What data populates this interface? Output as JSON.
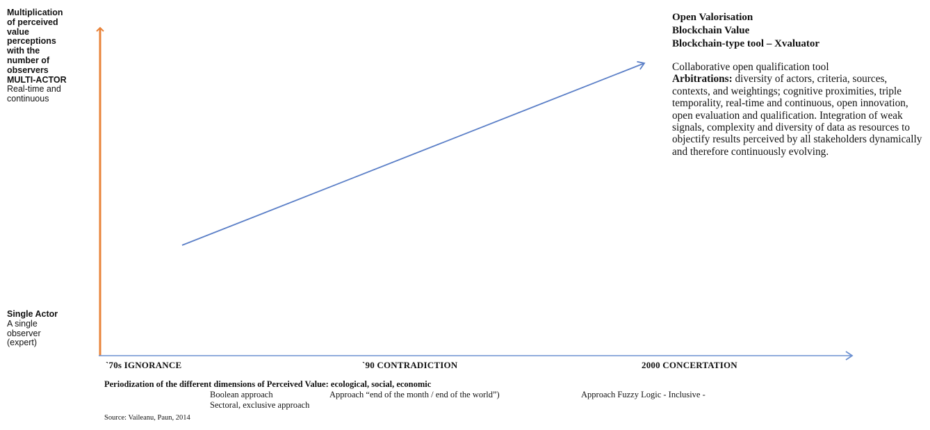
{
  "y_axis": {
    "top_label": {
      "bold_lines": [
        "Multiplication",
        "of perceived",
        "value",
        "perceptions",
        "with the",
        "number of",
        "observers",
        "MULTI-ACTOR"
      ],
      "normal_lines": [
        "Real-time and",
        "continuous"
      ]
    },
    "bottom_label": {
      "bold_lines": [
        "Single Actor"
      ],
      "normal_lines": [
        "A single",
        "observer",
        "(expert)"
      ]
    }
  },
  "x_axis": {
    "eras": [
      "`70s IGNORANCE",
      "`90 CONTRADICTION",
      "2000  CONCERTATION"
    ]
  },
  "info": {
    "title_lines": [
      "Open Valorisation",
      "Blockchain Value",
      "Blockchain-type tool – Xvaluator"
    ],
    "desc_intro": "Collaborative open qualification tool",
    "desc_label": "Arbitrations:",
    "desc_body": " diversity of actors, criteria, sources, contexts, and weightings; cognitive proximities, triple temporality, real-time and continuous, open innovation, open evaluation and qualification. Integration of weak signals, complexity and diversity of data as resources to objectify results perceived by all stakeholders dynamically and therefore continuously evolving."
  },
  "caption": "Periodization of the different dimensions of Perceived Value: ecological, social, economic",
  "approaches": {
    "boolean": "Boolean approach",
    "sectoral": "Sectoral, exclusive approach",
    "end_month": "Approach “end of the month / end of the world”)",
    "fuzzy": "Approach Fuzzy Logic - Inclusive -"
  },
  "source": "Source: Vaileanu, Paun, 2014",
  "colors": {
    "y_axis": "#e8833a",
    "x_axis": "#6a8fd0",
    "trend_arrow": "#5b7fc7"
  }
}
